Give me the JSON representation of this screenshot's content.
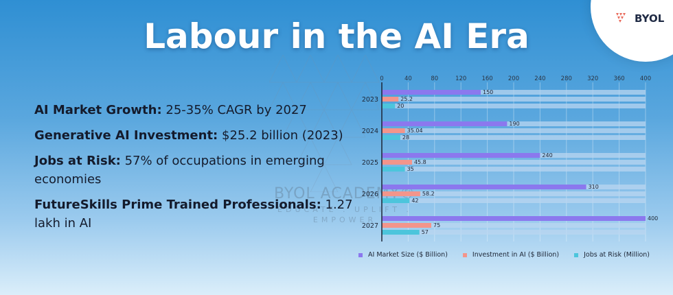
{
  "title": "Labour in the AI Era",
  "brand": {
    "name": "BYOL"
  },
  "watermark": {
    "title": "BYOL ACADEMY®",
    "line1": "EDUCATE . UPLIFT .",
    "line2": "EMPOWER"
  },
  "facts": [
    {
      "label": "AI Market Growth:",
      "value": " 25-35% CAGR by 2027"
    },
    {
      "label": "Generative AI Investment:",
      "value": " $25.2 billion (2023)"
    },
    {
      "label": "Jobs at Risk:",
      "value": " 57% of occupations in emerging economies"
    },
    {
      "label": "FutureSkills Prime Trained Professionals:",
      "value": " 1.27 lakh in AI"
    }
  ],
  "colors": {
    "market": "#8b78ee",
    "investment": "#f3958b",
    "jobs": "#4cc5dc",
    "track": "#b9d6f0"
  },
  "chart_data": {
    "type": "bar",
    "orientation": "horizontal",
    "categories": [
      "2023",
      "2024",
      "2025",
      "2026",
      "2027"
    ],
    "xlim": [
      0,
      400
    ],
    "xticks": [
      0,
      40,
      80,
      120,
      160,
      200,
      240,
      280,
      320,
      360,
      400
    ],
    "legend_position": "bottom",
    "series": [
      {
        "name": "AI Market Size ($ Billion)",
        "values": [
          150,
          190,
          240,
          310,
          400
        ],
        "labels": [
          "150",
          "190",
          "240",
          "310",
          "400"
        ],
        "color": "#8b78ee"
      },
      {
        "name": "Investment in AI ($ Billion)",
        "values": [
          25.2,
          35.04,
          45.8,
          58.2,
          75
        ],
        "labels": [
          "25.2",
          "35.04",
          "45.8",
          "58.2",
          "75"
        ],
        "color": "#f3958b"
      },
      {
        "name": "Jobs at Risk (Million)",
        "values": [
          20,
          28,
          35,
          42,
          57
        ],
        "labels": [
          "20",
          "28",
          "35",
          "42",
          "57"
        ],
        "color": "#4cc5dc"
      }
    ]
  }
}
